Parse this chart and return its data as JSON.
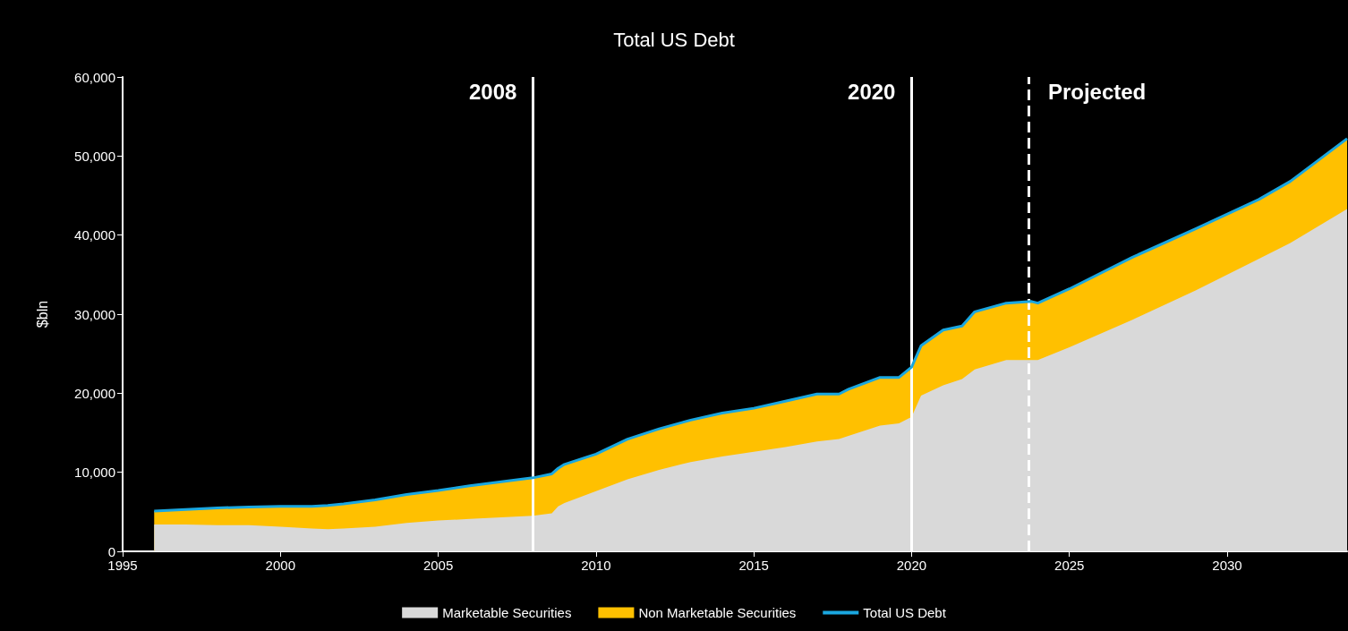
{
  "chart_data": {
    "type": "area",
    "title": "Total US Debt",
    "ylabel": "$bln",
    "stacked": true,
    "legend": "bottom",
    "grid": false,
    "x": [
      1996,
      1997,
      1998,
      1999,
      2000,
      2001,
      2001.5,
      2002,
      2003,
      2004,
      2005,
      2006,
      2007,
      2008,
      2008.6,
      2008.8,
      2009,
      2010,
      2011,
      2012,
      2013,
      2014,
      2015,
      2016,
      2017,
      2017.7,
      2018,
      2019,
      2019.6,
      2020,
      2020.3,
      2021,
      2021.6,
      2022,
      2023,
      2023.8,
      2024,
      2025,
      2027,
      2029,
      2031,
      2032,
      2033.8
    ],
    "series": [
      {
        "name": "Marketable Securities",
        "color": "#d9d9d9",
        "values": [
          3400,
          3400,
          3300,
          3300,
          3100,
          2900,
          2800,
          2900,
          3100,
          3600,
          3900,
          4100,
          4300,
          4500,
          4800,
          5700,
          6100,
          7600,
          9100,
          10300,
          11300,
          12000,
          12600,
          13200,
          13900,
          14200,
          14600,
          15900,
          16200,
          17000,
          19700,
          21000,
          21800,
          23000,
          24200,
          24200,
          24200,
          25800,
          29300,
          33000,
          37000,
          39000,
          43300
        ]
      },
      {
        "name": "Non Marketable Securities",
        "color": "#ffc000",
        "values": [
          1700,
          1900,
          2200,
          2300,
          2600,
          2800,
          3000,
          3100,
          3400,
          3600,
          3800,
          4200,
          4500,
          4800,
          5000,
          4800,
          4900,
          4700,
          5100,
          5200,
          5300,
          5500,
          5500,
          5800,
          6000,
          5700,
          5900,
          6100,
          5800,
          6300,
          6300,
          7000,
          6700,
          7300,
          7200,
          7400,
          7200,
          7400,
          7900,
          7800,
          7500,
          7800,
          8900
        ]
      },
      {
        "name": "Total US Debt",
        "type": "line",
        "color": "#1aa7e0",
        "values": [
          5100,
          5300,
          5500,
          5600,
          5700,
          5700,
          5800,
          6000,
          6500,
          7200,
          7700,
          8300,
          8800,
          9300,
          9800,
          10500,
          11000,
          12300,
          14200,
          15500,
          16600,
          17500,
          18100,
          19000,
          19900,
          19900,
          20500,
          22000,
          22000,
          23300,
          26000,
          28000,
          28500,
          30300,
          31400,
          31600,
          31400,
          33200,
          37200,
          40800,
          44500,
          46800,
          52200
        ]
      }
    ],
    "xlim": [
      1995,
      2033.8
    ],
    "xticks": [
      1995,
      2000,
      2005,
      2010,
      2015,
      2020,
      2025,
      2030
    ],
    "ylim": [
      0,
      60000
    ],
    "yticks": [
      0,
      {
        "value": 10000,
        "label": "10,000"
      },
      {
        "value": 20000,
        "label": "20,000"
      },
      {
        "value": 30000,
        "label": "30,000"
      },
      {
        "value": 40000,
        "label": "40,000"
      },
      {
        "value": 50000,
        "label": "50,000"
      },
      {
        "value": 60000,
        "label": "60,000"
      }
    ],
    "ref_lines": [
      {
        "axis": "x",
        "value": 2008,
        "label": "2008",
        "color": "#ffffff",
        "line_style": "solid"
      },
      {
        "axis": "x",
        "value": 2020,
        "label": "2020",
        "color": "#ffffff",
        "line_style": "solid"
      },
      {
        "axis": "x",
        "value": 2023.7,
        "label": "Projected",
        "color": "#ffffff",
        "line_style": "dashed"
      }
    ]
  }
}
